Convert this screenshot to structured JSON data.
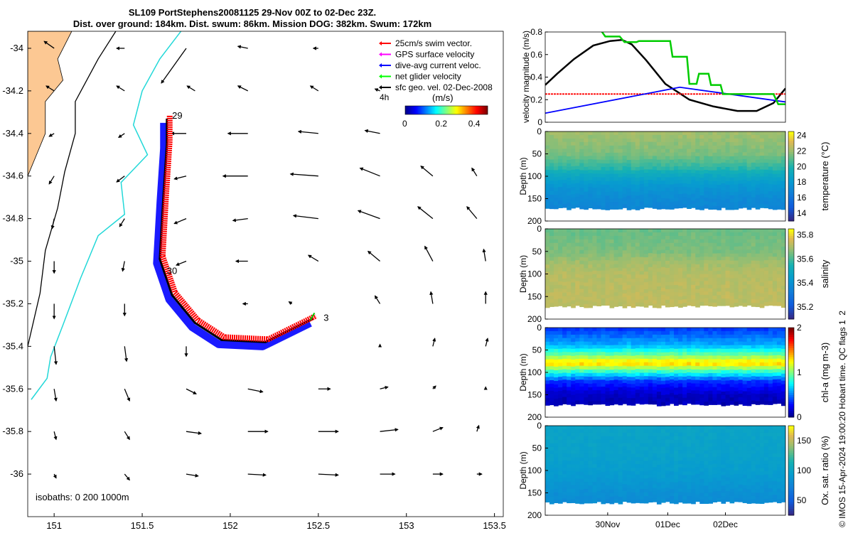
{
  "title": {
    "line1": "SL109 PortStephens20081125 29-Nov 00Z to 02-Dec 23Z.",
    "line2": "Dist. over ground: 184km. Dist. swum: 86km. Mission DOG: 382km. Swum: 172km"
  },
  "footer": "© IMOS 15-Apr-2024 19:00:20 Hobart time. QC flags 1  2",
  "chart_data": [
    {
      "type": "scatter",
      "name": "glider-track-map",
      "xlim": [
        150.85,
        153.55
      ],
      "ylim": [
        -36.2,
        -33.92
      ],
      "x_ticks": [
        151,
        151.5,
        152,
        152.5,
        153,
        153.5
      ],
      "x_tick_labels": [
        "151",
        "151.5",
        "152",
        "152.5",
        "153",
        "153.5"
      ],
      "y_ticks": [
        -34,
        -34.2,
        -34.4,
        -34.6,
        -34.8,
        -35,
        -35.2,
        -35.4,
        -35.6,
        -35.8,
        -36
      ],
      "y_tick_labels": [
        "-34",
        "-34.2",
        "-34.4",
        "-34.6",
        "-34.8",
        "-35",
        "-35.2",
        "-35.4",
        "-35.6",
        "-35.8",
        "-36"
      ],
      "legend": {
        "placement": "top-right",
        "items": [
          {
            "label": "25cm/s swim vector.",
            "color": "#ff0000"
          },
          {
            "label": "GPS surface velocity",
            "color": "#ff00ff"
          },
          {
            "label": "dive-avg current veloc.",
            "color": "#0000ff"
          },
          {
            "label": "net glider velocity",
            "color": "#00ff00"
          },
          {
            "label": "sfc geo. vel. 02-Dec-2008",
            "color": "#000000"
          }
        ]
      },
      "scale_label": "4h",
      "colorbar": {
        "label": "(m/s)",
        "ticks": [
          0,
          0.2,
          0.4
        ],
        "tick_labels": [
          "0",
          "0.2",
          "0.4"
        ],
        "range": [
          0,
          0.5
        ]
      },
      "track": [
        [
          151.64,
          -34.33
        ],
        [
          151.64,
          -34.45
        ],
        [
          151.62,
          -34.7
        ],
        [
          151.6,
          -34.99
        ],
        [
          151.67,
          -35.16
        ],
        [
          151.8,
          -35.29
        ],
        [
          151.95,
          -35.37
        ],
        [
          152.2,
          -35.38
        ],
        [
          152.47,
          -35.27
        ]
      ],
      "day_labels": [
        {
          "text": "29",
          "lon": 151.67,
          "lat": -34.33
        },
        {
          "text": "30",
          "lon": 151.64,
          "lat": -35.06
        },
        {
          "text": "3",
          "lon": 152.53,
          "lat": -35.28
        }
      ],
      "isobaths_label": "isobaths: 0   200  1000m",
      "coast": [
        [
          150.85,
          -33.92
        ],
        [
          151.1,
          -33.92
        ],
        [
          151.02,
          -34.05
        ],
        [
          151.05,
          -34.15
        ],
        [
          150.95,
          -34.25
        ],
        [
          150.95,
          -34.4
        ],
        [
          150.9,
          -34.5
        ],
        [
          150.85,
          -34.6
        ]
      ],
      "isobath_200": [
        [
          151.35,
          -33.92
        ],
        [
          151.25,
          -34.05
        ],
        [
          151.12,
          -34.25
        ],
        [
          151.12,
          -34.4
        ],
        [
          151.06,
          -34.58
        ],
        [
          151.02,
          -34.75
        ],
        [
          150.95,
          -34.95
        ],
        [
          150.92,
          -35.15
        ],
        [
          150.85,
          -35.4
        ]
      ],
      "isobath_1000": [
        [
          151.72,
          -33.92
        ],
        [
          151.6,
          -34.05
        ],
        [
          151.5,
          -34.2
        ],
        [
          151.45,
          -34.36
        ],
        [
          151.53,
          -34.5
        ],
        [
          151.38,
          -34.63
        ],
        [
          151.4,
          -34.78
        ],
        [
          151.25,
          -34.88
        ],
        [
          151.15,
          -35.08
        ],
        [
          151.05,
          -35.3
        ],
        [
          150.98,
          -35.45
        ],
        [
          150.96,
          -35.55
        ],
        [
          150.87,
          -35.65
        ]
      ],
      "current_vectors": [
        {
          "lon": 151.0,
          "lat": -34.0,
          "u": -0.1,
          "v": 0.07
        },
        {
          "lon": 151.4,
          "lat": -34.0,
          "u": -0.08,
          "v": 0.0
        },
        {
          "lon": 151.75,
          "lat": -34.0,
          "u": -0.25,
          "v": -0.35
        },
        {
          "lon": 152.1,
          "lat": -34.0,
          "u": -0.1,
          "v": 0.02
        },
        {
          "lon": 152.5,
          "lat": -34.0,
          "u": -0.05,
          "v": 0.0
        },
        {
          "lon": 151.0,
          "lat": -34.2,
          "u": -0.08,
          "v": 0.05
        },
        {
          "lon": 151.4,
          "lat": -34.2,
          "u": -0.08,
          "v": 0.05
        },
        {
          "lon": 151.8,
          "lat": -34.2,
          "u": -0.08,
          "v": 0.05
        },
        {
          "lon": 152.1,
          "lat": -34.2,
          "u": -0.1,
          "v": 0.05
        },
        {
          "lon": 152.5,
          "lat": -34.2,
          "u": -0.08,
          "v": 0.05
        },
        {
          "lon": 152.85,
          "lat": -34.2,
          "u": -0.05,
          "v": 0.02
        },
        {
          "lon": 151.0,
          "lat": -34.4,
          "u": -0.05,
          "v": -0.03
        },
        {
          "lon": 151.4,
          "lat": -34.4,
          "u": -0.06,
          "v": -0.04
        },
        {
          "lon": 151.75,
          "lat": -34.4,
          "u": -0.15,
          "v": 0.0
        },
        {
          "lon": 152.1,
          "lat": -34.4,
          "u": -0.2,
          "v": 0.0
        },
        {
          "lon": 152.5,
          "lat": -34.4,
          "u": -0.2,
          "v": 0.02
        },
        {
          "lon": 152.85,
          "lat": -34.4,
          "u": -0.15,
          "v": 0.03
        },
        {
          "lon": 151.0,
          "lat": -34.6,
          "u": -0.05,
          "v": -0.08
        },
        {
          "lon": 151.4,
          "lat": -34.6,
          "u": -0.08,
          "v": -0.06
        },
        {
          "lon": 151.75,
          "lat": -34.6,
          "u": -0.12,
          "v": -0.03
        },
        {
          "lon": 152.1,
          "lat": -34.6,
          "u": -0.25,
          "v": 0.0
        },
        {
          "lon": 152.5,
          "lat": -34.6,
          "u": -0.28,
          "v": 0.02
        },
        {
          "lon": 152.85,
          "lat": -34.6,
          "u": -0.2,
          "v": 0.08
        },
        {
          "lon": 153.15,
          "lat": -34.6,
          "u": -0.12,
          "v": 0.1
        },
        {
          "lon": 153.4,
          "lat": -34.6,
          "u": -0.05,
          "v": 0.08
        },
        {
          "lon": 151.0,
          "lat": -34.8,
          "u": -0.02,
          "v": -0.1
        },
        {
          "lon": 151.4,
          "lat": -34.8,
          "u": -0.05,
          "v": -0.08
        },
        {
          "lon": 151.75,
          "lat": -34.8,
          "u": -0.12,
          "v": -0.05
        },
        {
          "lon": 152.1,
          "lat": -34.8,
          "u": -0.15,
          "v": -0.02
        },
        {
          "lon": 152.5,
          "lat": -34.8,
          "u": -0.25,
          "v": 0.03
        },
        {
          "lon": 152.85,
          "lat": -34.8,
          "u": -0.22,
          "v": 0.08
        },
        {
          "lon": 153.15,
          "lat": -34.8,
          "u": -0.15,
          "v": 0.12
        },
        {
          "lon": 153.4,
          "lat": -34.8,
          "u": -0.1,
          "v": 0.12
        },
        {
          "lon": 151.0,
          "lat": -35.0,
          "u": 0.0,
          "v": -0.12
        },
        {
          "lon": 151.4,
          "lat": -35.0,
          "u": -0.02,
          "v": -0.1
        },
        {
          "lon": 151.75,
          "lat": -35.0,
          "u": -0.1,
          "v": -0.04
        },
        {
          "lon": 152.1,
          "lat": -35.0,
          "u": -0.12,
          "v": 0.0
        },
        {
          "lon": 152.5,
          "lat": -35.0,
          "u": -0.1,
          "v": 0.06
        },
        {
          "lon": 152.85,
          "lat": -35.0,
          "u": -0.12,
          "v": 0.1
        },
        {
          "lon": 153.15,
          "lat": -35.0,
          "u": -0.08,
          "v": 0.15
        },
        {
          "lon": 153.45,
          "lat": -35.0,
          "u": -0.02,
          "v": 0.12
        },
        {
          "lon": 151.0,
          "lat": -35.2,
          "u": 0.0,
          "v": -0.15
        },
        {
          "lon": 151.4,
          "lat": -35.2,
          "u": 0.0,
          "v": -0.12
        },
        {
          "lon": 151.75,
          "lat": -35.2,
          "u": -0.06,
          "v": -0.05
        },
        {
          "lon": 152.1,
          "lat": -35.2,
          "u": -0.05,
          "v": 0.0
        },
        {
          "lon": 152.35,
          "lat": -35.2,
          "u": -0.03,
          "v": 0.02
        },
        {
          "lon": 152.85,
          "lat": -35.2,
          "u": -0.05,
          "v": 0.08
        },
        {
          "lon": 153.15,
          "lat": -35.2,
          "u": -0.02,
          "v": 0.12
        },
        {
          "lon": 153.45,
          "lat": -35.2,
          "u": 0.0,
          "v": 0.12
        },
        {
          "lon": 151.0,
          "lat": -35.4,
          "u": 0.02,
          "v": -0.18
        },
        {
          "lon": 151.4,
          "lat": -35.4,
          "u": 0.02,
          "v": -0.15
        },
        {
          "lon": 151.75,
          "lat": -35.4,
          "u": 0.0,
          "v": -0.1
        },
        {
          "lon": 152.85,
          "lat": -35.4,
          "u": 0.0,
          "v": 0.02
        },
        {
          "lon": 153.15,
          "lat": -35.4,
          "u": 0.02,
          "v": 0.08
        },
        {
          "lon": 153.45,
          "lat": -35.4,
          "u": 0.02,
          "v": 0.08
        },
        {
          "lon": 151.0,
          "lat": -35.6,
          "u": 0.02,
          "v": -0.12
        },
        {
          "lon": 151.4,
          "lat": -35.6,
          "u": 0.05,
          "v": -0.12
        },
        {
          "lon": 151.75,
          "lat": -35.6,
          "u": 0.1,
          "v": -0.05
        },
        {
          "lon": 152.1,
          "lat": -35.6,
          "u": 0.15,
          "v": -0.03
        },
        {
          "lon": 152.5,
          "lat": -35.6,
          "u": 0.12,
          "v": 0.0
        },
        {
          "lon": 152.85,
          "lat": -35.6,
          "u": 0.08,
          "v": 0.02
        },
        {
          "lon": 153.15,
          "lat": -35.6,
          "u": 0.03,
          "v": 0.03
        },
        {
          "lon": 153.45,
          "lat": -35.6,
          "u": 0.0,
          "v": 0.02
        },
        {
          "lon": 151.0,
          "lat": -35.8,
          "u": 0.02,
          "v": -0.08
        },
        {
          "lon": 151.4,
          "lat": -35.8,
          "u": 0.05,
          "v": -0.08
        },
        {
          "lon": 151.75,
          "lat": -35.8,
          "u": 0.15,
          "v": -0.02
        },
        {
          "lon": 152.1,
          "lat": -35.8,
          "u": 0.2,
          "v": 0.0
        },
        {
          "lon": 152.5,
          "lat": -35.8,
          "u": 0.2,
          "v": 0.0
        },
        {
          "lon": 152.85,
          "lat": -35.8,
          "u": 0.18,
          "v": 0.02
        },
        {
          "lon": 153.15,
          "lat": -35.8,
          "u": 0.1,
          "v": 0.04
        },
        {
          "lon": 153.4,
          "lat": -35.8,
          "u": 0.02,
          "v": 0.06
        },
        {
          "lon": 151.0,
          "lat": -36.0,
          "u": 0.02,
          "v": -0.04
        },
        {
          "lon": 151.4,
          "lat": -36.0,
          "u": 0.05,
          "v": -0.06
        },
        {
          "lon": 151.75,
          "lat": -36.0,
          "u": 0.12,
          "v": -0.02
        },
        {
          "lon": 152.1,
          "lat": -36.0,
          "u": 0.18,
          "v": -0.01
        },
        {
          "lon": 152.5,
          "lat": -36.0,
          "u": 0.2,
          "v": -0.01
        },
        {
          "lon": 152.85,
          "lat": -36.0,
          "u": 0.15,
          "v": 0.0
        },
        {
          "lon": 153.15,
          "lat": -36.0,
          "u": 0.1,
          "v": 0.0
        },
        {
          "lon": 153.4,
          "lat": -36.0,
          "u": 0.05,
          "v": 0.0
        }
      ]
    },
    {
      "type": "line",
      "name": "velocity-magnitude",
      "ylabel": "velocity magnitude (m/s)",
      "ylim": [
        0,
        0.8
      ],
      "y_ticks": [
        0,
        0.2,
        0.4,
        0.6,
        0.8
      ],
      "y_tick_labels": [
        "0",
        "0.2",
        "0.4",
        "0.6",
        "0.8"
      ],
      "xlim": [
        0,
        1
      ],
      "series": [
        {
          "color": "#000000",
          "x": [
            0,
            0.05,
            0.12,
            0.2,
            0.27,
            0.32,
            0.36,
            0.42,
            0.5,
            0.6,
            0.7,
            0.8,
            0.88,
            0.95,
            1.0
          ],
          "y": [
            0.33,
            0.43,
            0.56,
            0.68,
            0.72,
            0.73,
            0.69,
            0.55,
            0.34,
            0.2,
            0.14,
            0.1,
            0.1,
            0.17,
            0.3
          ]
        },
        {
          "color": "#ff0000",
          "x": [
            0,
            1
          ],
          "y": [
            0.25,
            0.25
          ]
        },
        {
          "color": "#0000ff",
          "x": [
            0,
            0.56,
            1.0
          ],
          "y": [
            0.08,
            0.31,
            0.18
          ]
        },
        {
          "color": "#00cc00",
          "x": [
            0.23,
            0.25,
            0.31,
            0.33,
            0.38,
            0.39,
            0.52,
            0.53,
            0.59,
            0.6,
            0.63,
            0.64,
            0.68,
            0.69,
            0.73,
            0.74,
            0.95,
            0.97,
            1.0
          ],
          "y": [
            0.82,
            0.76,
            0.76,
            0.71,
            0.71,
            0.72,
            0.72,
            0.58,
            0.58,
            0.34,
            0.34,
            0.43,
            0.43,
            0.33,
            0.33,
            0.25,
            0.25,
            0.16,
            0.16
          ]
        }
      ]
    },
    {
      "type": "heatmap",
      "name": "temperature-section",
      "ylabel": "Depth (m)",
      "y_ticks": [
        0,
        50,
        100,
        150,
        200
      ],
      "y_tick_labels": [
        "0",
        "50",
        "100",
        "150",
        "200"
      ],
      "colorbar_label": "temperature (°C)",
      "colorbar_ticks": [
        14,
        16,
        18,
        20,
        22,
        24
      ],
      "colorbar_tick_labels": [
        "14",
        "16",
        "18",
        "20",
        "22",
        "24"
      ],
      "colorbar_range": [
        13,
        24.5
      ],
      "depth_profile": [
        [
          0,
          22.2
        ],
        [
          50,
          21.6
        ],
        [
          80,
          20.4
        ],
        [
          100,
          19.0
        ],
        [
          120,
          18.0
        ],
        [
          150,
          17.2
        ],
        [
          175,
          16.9
        ]
      ],
      "max_depth": 175
    },
    {
      "type": "heatmap",
      "name": "salinity-section",
      "ylabel": "Depth (m)",
      "y_ticks": [
        0,
        50,
        100,
        150,
        200
      ],
      "y_tick_labels": [
        "0",
        "50",
        "100",
        "150",
        "200"
      ],
      "colorbar_label": "salinity",
      "colorbar_ticks": [
        35.2,
        35.4,
        35.6,
        35.8
      ],
      "colorbar_tick_labels": [
        "35.2",
        "35.4",
        "35.6",
        "35.8"
      ],
      "colorbar_range": [
        35.1,
        35.85
      ],
      "depth_profile": [
        [
          0,
          35.64
        ],
        [
          50,
          35.66
        ],
        [
          75,
          35.7
        ],
        [
          100,
          35.72
        ],
        [
          150,
          35.73
        ],
        [
          175,
          35.73
        ]
      ],
      "max_depth": 175
    },
    {
      "type": "heatmap",
      "name": "chl-a-section",
      "ylabel": "Depth (m)",
      "y_ticks": [
        0,
        50,
        100,
        150,
        200
      ],
      "y_tick_labels": [
        "0",
        "50",
        "100",
        "150",
        "200"
      ],
      "colorbar_label": "chl-a (mg m-3)",
      "colorbar_ticks": [
        0,
        1,
        2
      ],
      "colorbar_tick_labels": [
        "0",
        "1",
        "2"
      ],
      "colorbar_range": [
        0,
        2
      ],
      "depth_profile": [
        [
          0,
          0.35
        ],
        [
          40,
          0.6
        ],
        [
          60,
          0.95
        ],
        [
          80,
          1.35
        ],
        [
          100,
          0.8
        ],
        [
          120,
          0.35
        ],
        [
          150,
          0.12
        ],
        [
          175,
          0.08
        ]
      ],
      "max_depth": 175
    },
    {
      "type": "heatmap",
      "name": "oxygen-section",
      "ylabel": "Depth (m)",
      "y_ticks": [
        0,
        50,
        100,
        150,
        200
      ],
      "y_tick_labels": [
        "0",
        "50",
        "100",
        "150",
        "200"
      ],
      "x_tick_labels": [
        "30Nov",
        "01Dec",
        "02Dec"
      ],
      "x_ticks": [
        0.26,
        0.51,
        0.75
      ],
      "colorbar_label": "Ox. sat. ratio (%)",
      "colorbar_ticks": [
        50,
        100,
        150
      ],
      "colorbar_tick_labels": [
        "50",
        "100",
        "150"
      ],
      "colorbar_range": [
        25,
        175
      ],
      "depth_profile": [
        [
          0,
          100
        ],
        [
          60,
          98
        ],
        [
          100,
          94
        ],
        [
          150,
          84
        ],
        [
          175,
          80
        ]
      ],
      "max_depth": 175
    }
  ]
}
